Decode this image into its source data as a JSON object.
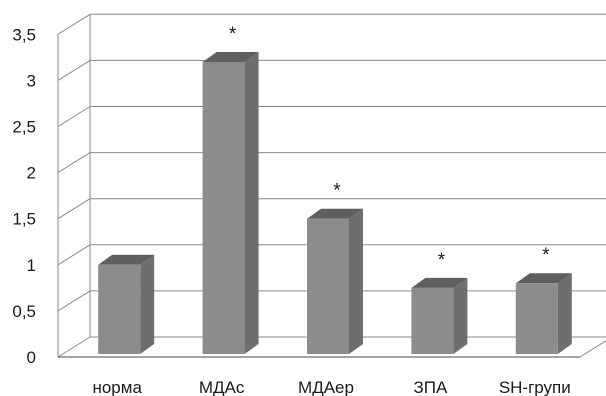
{
  "chart_data": {
    "type": "bar",
    "categories": [
      "норма",
      "МДАс",
      "МДАер",
      "ЗПА",
      "SH-групи"
    ],
    "values": [
      1.0,
      3.2,
      1.5,
      0.75,
      0.8
    ],
    "annotations": [
      "",
      "*",
      "*",
      "*",
      "*"
    ],
    "yticks": [
      "0",
      "0,5",
      "1",
      "1,5",
      "2",
      "2,5",
      "3",
      "3,5"
    ],
    "ylim": [
      0,
      3.5
    ],
    "grid": true,
    "legend": "none",
    "title": "",
    "xlabel": "",
    "ylabel": "",
    "colors": {
      "bar_front": "#8c8c8c",
      "bar_side": "#6e6e6e",
      "bar_top": "#5f5f5f",
      "grid": "#8a8a8a"
    }
  }
}
